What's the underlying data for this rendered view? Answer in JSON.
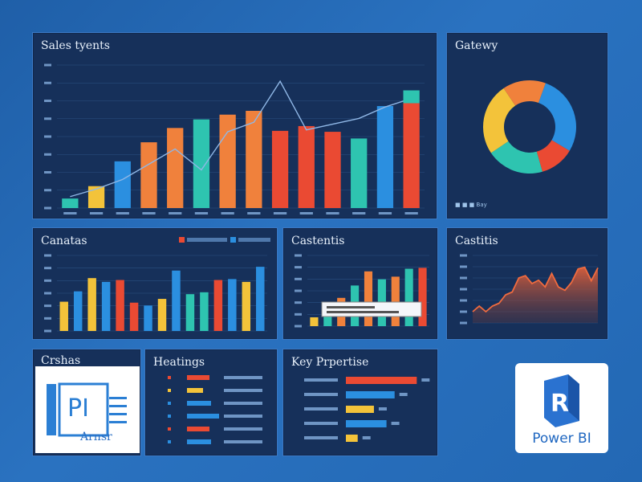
{
  "panels": {
    "sales": {
      "title": "Sales tyents"
    },
    "gateway": {
      "title": "Gatewy"
    },
    "categories1": {
      "title": "Canatas"
    },
    "categories2": {
      "title": "Castentis"
    },
    "categories3": {
      "title": "Castitis"
    },
    "quickstart": {
      "title": "Crshas",
      "thumb_label": "Arnsr"
    },
    "heatings": {
      "title": "Heatings"
    },
    "keyproperties": {
      "title": "Key Prpertise"
    }
  },
  "logo": {
    "label": "Power BI",
    "mark": "R"
  },
  "colors": {
    "teal": "#2ec4b0",
    "blue": "#2b8fe0",
    "orange": "#f0813c",
    "red": "#ea4a33",
    "yellow": "#f3c33a",
    "line": "#8fb7e6"
  },
  "chart_data": [
    {
      "type": "bar",
      "title": "Sales tyents",
      "categories": [
        "c1",
        "c2",
        "c3",
        "c4",
        "c5",
        "c6",
        "c7",
        "c8",
        "c9",
        "c10",
        "c11",
        "c12",
        "c13",
        "c14"
      ],
      "values": [
        1.0,
        2.3,
        4.9,
        6.9,
        8.4,
        9.3,
        9.8,
        10.2,
        8.1,
        8.6,
        8.0,
        7.3,
        10.7,
        11.0
      ],
      "colors": [
        "teal",
        "yellow",
        "blue",
        "orange",
        "orange",
        "teal",
        "orange",
        "orange",
        "red",
        "red",
        "red",
        "teal",
        "blue",
        "red"
      ],
      "line": [
        1.2,
        2.0,
        3.0,
        4.6,
        6.2,
        4.0,
        8.0,
        9.0,
        13.3,
        8.2,
        8.8,
        9.4,
        10.6,
        11.5
      ],
      "ylim": [
        0,
        15
      ]
    },
    {
      "type": "pie",
      "title": "Gatewy",
      "values": [
        28,
        12,
        20,
        25,
        15
      ],
      "colors": [
        "#2b8fe0",
        "#ea4a33",
        "#2ec4b0",
        "#f3c33a",
        "#f0813c"
      ],
      "legend": [
        "■ ■ ■ Bay"
      ]
    },
    {
      "type": "bar",
      "title": "Canatas",
      "values": [
        3.1,
        4.2,
        5.6,
        5.2,
        5.4,
        3.0,
        2.7,
        3.4,
        6.4,
        3.9,
        4.1,
        5.4,
        5.5,
        5.2,
        6.8
      ],
      "colors": [
        "yellow",
        "blue",
        "yellow",
        "blue",
        "red",
        "red",
        "blue",
        "yellow",
        "blue",
        "teal",
        "teal",
        "red",
        "blue",
        "yellow",
        "blue"
      ],
      "ylim": [
        0,
        8
      ]
    },
    {
      "type": "bar",
      "title": "Castentis",
      "values": [
        1.0,
        2.0,
        3.2,
        4.6,
        6.2,
        5.3,
        5.6,
        6.5,
        6.6
      ],
      "colors": [
        "yellow",
        "teal",
        "orange",
        "teal",
        "orange",
        "teal",
        "orange",
        "teal",
        "red"
      ],
      "ylim": [
        0,
        8
      ]
    },
    {
      "type": "area",
      "title": "Castitis",
      "values": [
        2,
        3,
        2,
        3,
        3.5,
        5,
        5.5,
        8,
        8.4,
        7,
        7.6,
        6.4,
        8.8,
        6.4,
        5.8,
        7.2,
        9.6,
        9.9,
        7.5,
        9.8
      ],
      "ylim": [
        0,
        12
      ]
    },
    {
      "type": "bar",
      "title": "Key Prpertise",
      "categories": [
        "Prone",
        "Sbow",
        "Pcenton",
        "Prdation",
        "Pronchay"
      ],
      "values": [
        96,
        66,
        38,
        55,
        16
      ],
      "colors": [
        "#ea4a33",
        "#2b8fe0",
        "#f3c33a",
        "#2b8fe0",
        "#f3c33a"
      ]
    },
    {
      "type": "bar",
      "title": "Heatings",
      "values": [
        28,
        20,
        30,
        40,
        28,
        30
      ],
      "colors": [
        "#ea4a33",
        "#f3c33a",
        "#2b8fe0",
        "#2b8fe0",
        "#ea4a33",
        "#2b8fe0"
      ]
    }
  ]
}
